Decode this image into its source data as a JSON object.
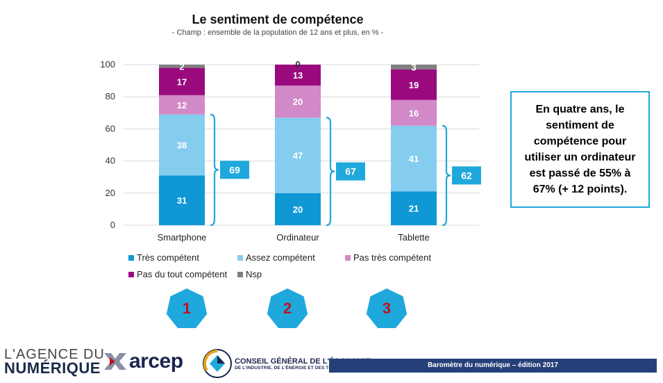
{
  "title": "Le sentiment de compétence",
  "subtitle": "- Champ : ensemble de la population de 12 ans et plus, en % -",
  "chart_data": {
    "type": "bar",
    "stacked": true,
    "categories": [
      "Smartphone",
      "Ordinateur",
      "Tablette"
    ],
    "ylim": [
      0,
      100
    ],
    "yticks": [
      0,
      20,
      40,
      60,
      80,
      100
    ],
    "series": [
      {
        "name": "Très compétent",
        "color": "#0f98d4",
        "values": [
          31,
          20,
          21
        ]
      },
      {
        "name": "Assez compétent",
        "color": "#85cdee",
        "values": [
          38,
          47,
          41
        ]
      },
      {
        "name": "Pas très compétent",
        "color": "#d189c7",
        "values": [
          12,
          20,
          16
        ]
      },
      {
        "name": "Pas du tout compétent",
        "color": "#9a0a7e",
        "values": [
          17,
          13,
          19
        ]
      },
      {
        "name": "Nsp",
        "color": "#7f7f7f",
        "values": [
          2,
          0,
          3
        ]
      }
    ],
    "bracket_totals": [
      69,
      67,
      62
    ],
    "bracket_color": "#1fa8dc",
    "grid": true,
    "legend_position": "bottom-left"
  },
  "legend": [
    {
      "label": "Très compétent",
      "color": "#0f98d4"
    },
    {
      "label": "Assez compétent",
      "color": "#85cdee"
    },
    {
      "label": "Pas très compétent",
      "color": "#d189c7"
    },
    {
      "label": "Pas du tout compétent",
      "color": "#9a0a7e"
    },
    {
      "label": "Nsp",
      "color": "#7f7f7f"
    }
  ],
  "callout": {
    "text": "En quatre ans, le sentiment de compétence pour utiliser un ordinateur est passé de 55% à 67% (+ 12 points)."
  },
  "badges": [
    "1",
    "2",
    "3"
  ],
  "badge_color": "#1fa8dc",
  "footer": {
    "agence_line1": "L'AGENCE DU",
    "agence_line2": "NUMÉRIQUE",
    "arcep": "arcep",
    "cge_line1": "CONSEIL GÉNÉRAL DE L'ÉCONOMIE",
    "cge_line2": "DE L'INDUSTRIE, DE L'ÉNERGIE ET DES TECHNOLOGIES",
    "bar_text": "Baromètre du numérique – édition 2017"
  }
}
